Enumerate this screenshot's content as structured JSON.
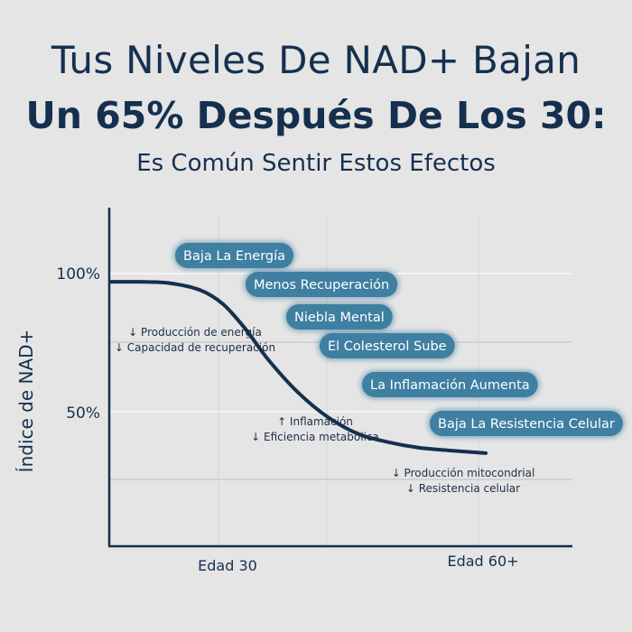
{
  "header": {
    "line1": "Tus Niveles De NAD+ Bajan",
    "line2": "Un 65% Después De Los 30:",
    "line3": "Es Común Sentir Estos Efectos"
  },
  "colors": {
    "background": "#e5e5e5",
    "text": "#15304f",
    "curve": "#15304f",
    "pill": "#3f7fa1",
    "gridline": "#f4f4f4"
  },
  "chart_data": {
    "type": "line",
    "title": "",
    "xlabel": "",
    "ylabel": "Índice de NAD+",
    "x_ticks": [
      "Edad 30",
      "Edad 60+"
    ],
    "y_ticks": [
      "100%",
      "50%"
    ],
    "grid": true,
    "series": [
      {
        "x": [
          0,
          0.08,
          0.16,
          0.24,
          0.3,
          0.36,
          0.42,
          0.5,
          0.58,
          0.66,
          0.74,
          0.82,
          0.9,
          1.0
        ],
        "values": [
          97,
          97,
          96.5,
          94,
          89,
          80,
          69,
          57,
          48,
          42,
          39,
          37,
          36,
          35
        ]
      }
    ],
    "labels": [
      "Baja La Energía",
      "Menos Recuperación",
      "Niebla Mental",
      "El Colesterol Sube",
      "La Inflamación Aumenta",
      "Baja La Resistencia Celular"
    ],
    "annotations": [
      [
        "↓ Producción de energía",
        "↓ Capacidad de recuperación"
      ],
      [
        "↑ Inflamación",
        "↓ Eficiencia metabólica"
      ],
      [
        "↓ Producción mitocondrial",
        "↓ Resistencia celular"
      ]
    ]
  }
}
